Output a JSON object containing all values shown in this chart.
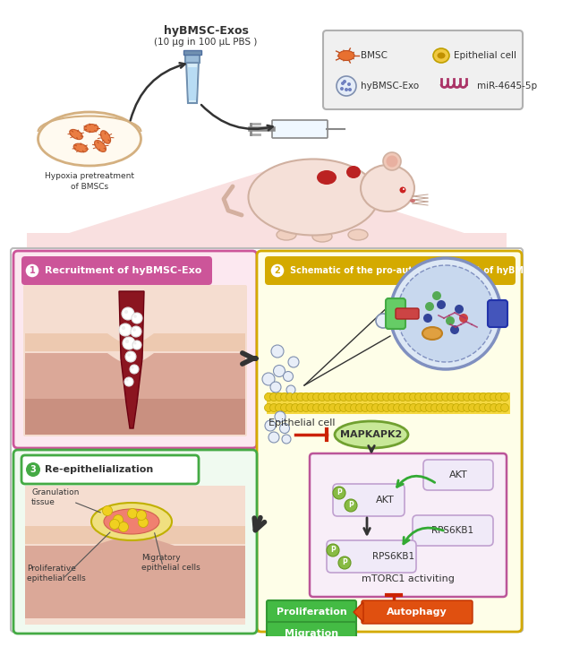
{
  "bg_color": "#ffffff",
  "hybmsc_exos_label": "hyBMSC-Exos",
  "hybmsc_exos_sub": "(10 μg in 100 μL PBS )",
  "hypoxia_label": "Hypoxia pretreatment\nof BMSCs",
  "panel1_title": "Recruitment of hyBMSC-Exo",
  "panel2_title": "Schematic of the pro-autophagy effect of hyBMSC-Exos",
  "panel3_title": "Re-epithelialization",
  "mapkapk2_label": "MAPKAPK2",
  "akt_label": "AKT",
  "akt_p_label": "AKT",
  "rps6kb1_label": "RPS6KB1",
  "rps6kb1_p_label": "RPS6KB1",
  "mtorc1_label": "mTORC1 activiting",
  "proliferation_label": "Proliferation",
  "migration_label": "Migration",
  "autophagy_label": "Autophagy",
  "epithelial_cell_label": "Epithelial cell",
  "granulation_label": "Granulation\ntissue",
  "proliferative_label": "Proliferative\nepithelial cells",
  "migratory_label": "Migratory\nepithelial cells",
  "legend_bmsc": "BMSC",
  "legend_epithelial": "Epithelial cell",
  "legend_hybmsc_exo": "hyBMSC-Exo",
  "legend_mir": "miR-4645-5p",
  "top_pink": "#f9e0e0",
  "panel1_bg": "#fce8f0",
  "panel1_border": "#cc5599",
  "panel1_title_bg": "#cc5599",
  "panel2_bg": "#fefee8",
  "panel2_border": "#d4aa00",
  "panel2_title_bg": "#d4aa00",
  "panel3_bg": "#f0faf0",
  "panel3_border": "#44aa44",
  "panel3_title_bg": "#44aa44",
  "wound_dark": "#8b1520",
  "skin1": "#f5ddd0",
  "skin2": "#edc9b0",
  "skin3": "#dba898",
  "skin4": "#c99080",
  "green_arrow": "#33aa33",
  "red_stop": "#cc2200",
  "dark": "#333333",
  "mapk_fill": "#c8e898",
  "mapk_border": "#70a030",
  "box_fill": "#f8eef8",
  "box_border": "#bb5599",
  "akt_fill": "#f0eaf8",
  "akt_border": "#c0a0d0",
  "p_fill": "#88bb44",
  "p_border": "#669922",
  "prol_fill": "#44bb44",
  "auto_fill": "#e05010",
  "legend_bg": "#f0f0f0",
  "legend_border": "#b0b0b0",
  "cell_bg": "#dde8f5",
  "cell_border": "#8090c0",
  "cell_inner": "#c8d8ee",
  "orange_org": "#e0a040",
  "blue_org": "#3366cc",
  "green_recept": "#66cc66",
  "blue_recept": "#4455bb",
  "exo_fill": "#e8eef8",
  "exo_border": "#8090b0",
  "membrane_fill": "#f5d840",
  "membrane_border": "#c0a800",
  "mir_color": "#aa3366",
  "bmsc_fill": "#e87030",
  "bmsc_border": "#c05020",
  "epi_fill": "#f0c840",
  "epi_border": "#c0a000",
  "gran_fill": "#f0e080",
  "gran_border": "#c0b000",
  "gran_pink": "#f08070"
}
